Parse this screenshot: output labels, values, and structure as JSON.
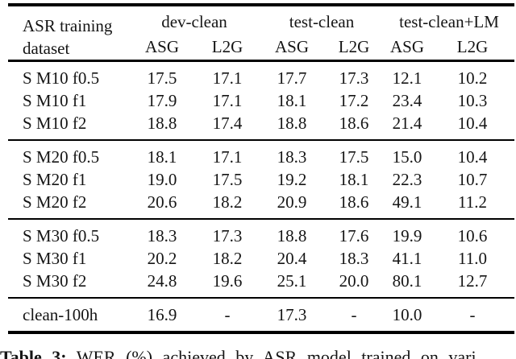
{
  "page": {
    "background": "#ffffff",
    "text_color": "#151515",
    "rule_color": "#000000"
  },
  "table": {
    "header": {
      "stub_line1": "ASR training",
      "stub_line2": "dataset",
      "group_labels": [
        "dev-clean",
        "test-clean",
        "test-clean+LM"
      ],
      "sub_labels": [
        "ASG",
        "L2G",
        "ASG",
        "L2G",
        "ASG",
        "L2G"
      ]
    },
    "groups": [
      {
        "rows": [
          {
            "label": "S M10 f0.5",
            "values": [
              "17.5",
              "17.1",
              "17.7",
              "17.3",
              "12.1",
              "10.2"
            ]
          },
          {
            "label": "S M10 f1",
            "values": [
              "17.9",
              "17.1",
              "18.1",
              "17.2",
              "23.4",
              "10.3"
            ]
          },
          {
            "label": "S M10 f2",
            "values": [
              "18.8",
              "17.4",
              "18.8",
              "18.6",
              "21.4",
              "10.4"
            ]
          }
        ]
      },
      {
        "rows": [
          {
            "label": "S M20 f0.5",
            "values": [
              "18.1",
              "17.1",
              "18.3",
              "17.5",
              "15.0",
              "10.4"
            ]
          },
          {
            "label": "S M20 f1",
            "values": [
              "19.0",
              "17.5",
              "19.2",
              "18.1",
              "22.3",
              "10.7"
            ]
          },
          {
            "label": "S M20 f2",
            "values": [
              "20.6",
              "18.2",
              "20.9",
              "18.6",
              "49.1",
              "11.2"
            ]
          }
        ]
      },
      {
        "rows": [
          {
            "label": "S M30 f0.5",
            "values": [
              "18.3",
              "17.3",
              "18.8",
              "17.6",
              "19.9",
              "10.6"
            ]
          },
          {
            "label": "S M30 f1",
            "values": [
              "20.2",
              "18.2",
              "20.4",
              "18.3",
              "41.1",
              "11.0"
            ]
          },
          {
            "label": "S M30 f2",
            "values": [
              "24.8",
              "19.6",
              "25.1",
              "20.0",
              "80.1",
              "12.7"
            ]
          }
        ]
      },
      {
        "rows": [
          {
            "label": "clean-100h",
            "values": [
              "16.9",
              "-",
              "17.3",
              "-",
              "10.0",
              "-"
            ]
          }
        ]
      }
    ]
  },
  "caption": {
    "label": "Table 3:",
    "text": "WER (%) achieved by ASR model trained on vari"
  }
}
